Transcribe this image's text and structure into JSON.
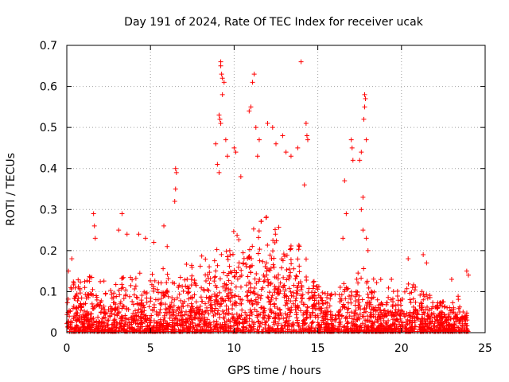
{
  "chart_data": {
    "type": "scatter",
    "title": "Day 191 of 2024, Rate Of TEC Index for receiver ucak",
    "xlabel": "GPS time / hours",
    "ylabel": "ROTI / TECUs",
    "xlim": [
      0,
      25
    ],
    "ylim": [
      0,
      0.7
    ],
    "xticks": [
      0,
      5,
      10,
      15,
      20,
      25
    ],
    "xtick_labels": [
      "0",
      "5",
      "10",
      "15",
      "20",
      "25"
    ],
    "yticks": [
      0,
      0.1,
      0.2,
      0.3,
      0.4,
      0.5,
      0.6,
      0.7
    ],
    "ytick_labels": [
      "0",
      "0.1",
      "0.2",
      "0.3",
      "0.4",
      "0.5",
      "0.6",
      "0.7"
    ],
    "grid": true,
    "marker": "plus",
    "color": "#ff0000",
    "envelope": {
      "x": [
        0,
        0.5,
        1,
        1.5,
        2,
        2.5,
        3,
        3.5,
        4,
        4.5,
        5,
        5.5,
        6,
        6.5,
        7,
        7.5,
        8,
        8.5,
        9,
        9.5,
        10,
        10.5,
        11,
        11.5,
        12,
        12.5,
        13,
        13.5,
        14,
        14.5,
        15,
        15.5,
        16,
        16.5,
        17,
        17.5,
        18,
        18.5,
        19,
        19.5,
        20,
        20.5,
        21,
        21.5,
        22,
        22.5,
        23,
        23.5,
        24
      ],
      "y": [
        0.1,
        0.14,
        0.1,
        0.14,
        0.12,
        0.1,
        0.12,
        0.14,
        0.13,
        0.13,
        0.13,
        0.14,
        0.14,
        0.14,
        0.15,
        0.15,
        0.16,
        0.16,
        0.2,
        0.22,
        0.24,
        0.26,
        0.27,
        0.25,
        0.25,
        0.24,
        0.22,
        0.22,
        0.22,
        0.18,
        0.14,
        0.1,
        0.1,
        0.12,
        0.12,
        0.14,
        0.15,
        0.14,
        0.12,
        0.1,
        0.1,
        0.1,
        0.12,
        0.1,
        0.09,
        0.08,
        0.08,
        0.08,
        0.08
      ]
    },
    "outliers": [
      {
        "x": 0.3,
        "y": 0.18
      },
      {
        "x": 0.1,
        "y": 0.15
      },
      {
        "x": 1.6,
        "y": 0.29
      },
      {
        "x": 1.65,
        "y": 0.26
      },
      {
        "x": 1.7,
        "y": 0.23
      },
      {
        "x": 3.3,
        "y": 0.29
      },
      {
        "x": 3.1,
        "y": 0.25
      },
      {
        "x": 3.6,
        "y": 0.24
      },
      {
        "x": 4.3,
        "y": 0.24
      },
      {
        "x": 4.7,
        "y": 0.23
      },
      {
        "x": 5.2,
        "y": 0.22
      },
      {
        "x": 5.8,
        "y": 0.26
      },
      {
        "x": 6.0,
        "y": 0.21
      },
      {
        "x": 6.5,
        "y": 0.4
      },
      {
        "x": 6.55,
        "y": 0.39
      },
      {
        "x": 6.5,
        "y": 0.35
      },
      {
        "x": 6.45,
        "y": 0.32
      },
      {
        "x": 8.9,
        "y": 0.46
      },
      {
        "x": 9.1,
        "y": 0.39
      },
      {
        "x": 9.2,
        "y": 0.65
      },
      {
        "x": 9.2,
        "y": 0.66
      },
      {
        "x": 9.25,
        "y": 0.63
      },
      {
        "x": 9.3,
        "y": 0.62
      },
      {
        "x": 9.4,
        "y": 0.61
      },
      {
        "x": 9.3,
        "y": 0.58
      },
      {
        "x": 9.1,
        "y": 0.53
      },
      {
        "x": 9.15,
        "y": 0.52
      },
      {
        "x": 9.2,
        "y": 0.51
      },
      {
        "x": 9.5,
        "y": 0.47
      },
      {
        "x": 9.6,
        "y": 0.43
      },
      {
        "x": 9.0,
        "y": 0.41
      },
      {
        "x": 10.0,
        "y": 0.45
      },
      {
        "x": 10.1,
        "y": 0.44
      },
      {
        "x": 10.4,
        "y": 0.38
      },
      {
        "x": 11.2,
        "y": 0.63
      },
      {
        "x": 11.1,
        "y": 0.61
      },
      {
        "x": 11.0,
        "y": 0.55
      },
      {
        "x": 10.9,
        "y": 0.54
      },
      {
        "x": 11.3,
        "y": 0.5
      },
      {
        "x": 11.5,
        "y": 0.47
      },
      {
        "x": 11.4,
        "y": 0.43
      },
      {
        "x": 12.0,
        "y": 0.51
      },
      {
        "x": 12.3,
        "y": 0.5
      },
      {
        "x": 12.5,
        "y": 0.46
      },
      {
        "x": 12.9,
        "y": 0.48
      },
      {
        "x": 13.1,
        "y": 0.44
      },
      {
        "x": 13.4,
        "y": 0.43
      },
      {
        "x": 13.8,
        "y": 0.45
      },
      {
        "x": 14.0,
        "y": 0.66
      },
      {
        "x": 14.3,
        "y": 0.51
      },
      {
        "x": 14.35,
        "y": 0.48
      },
      {
        "x": 14.4,
        "y": 0.47
      },
      {
        "x": 14.2,
        "y": 0.36
      },
      {
        "x": 16.6,
        "y": 0.37
      },
      {
        "x": 16.7,
        "y": 0.29
      },
      {
        "x": 16.5,
        "y": 0.23
      },
      {
        "x": 17.0,
        "y": 0.47
      },
      {
        "x": 17.05,
        "y": 0.45
      },
      {
        "x": 17.1,
        "y": 0.42
      },
      {
        "x": 17.5,
        "y": 0.42
      },
      {
        "x": 17.6,
        "y": 0.44
      },
      {
        "x": 17.8,
        "y": 0.58
      },
      {
        "x": 17.85,
        "y": 0.57
      },
      {
        "x": 17.8,
        "y": 0.55
      },
      {
        "x": 17.75,
        "y": 0.52
      },
      {
        "x": 17.9,
        "y": 0.47
      },
      {
        "x": 17.7,
        "y": 0.33
      },
      {
        "x": 17.6,
        "y": 0.3
      },
      {
        "x": 17.7,
        "y": 0.25
      },
      {
        "x": 17.9,
        "y": 0.23
      },
      {
        "x": 18.0,
        "y": 0.2
      },
      {
        "x": 19.4,
        "y": 0.13
      },
      {
        "x": 20.4,
        "y": 0.18
      },
      {
        "x": 21.3,
        "y": 0.19
      },
      {
        "x": 21.5,
        "y": 0.17
      },
      {
        "x": 23.0,
        "y": 0.13
      },
      {
        "x": 23.9,
        "y": 0.15
      },
      {
        "x": 24.0,
        "y": 0.14
      }
    ]
  }
}
